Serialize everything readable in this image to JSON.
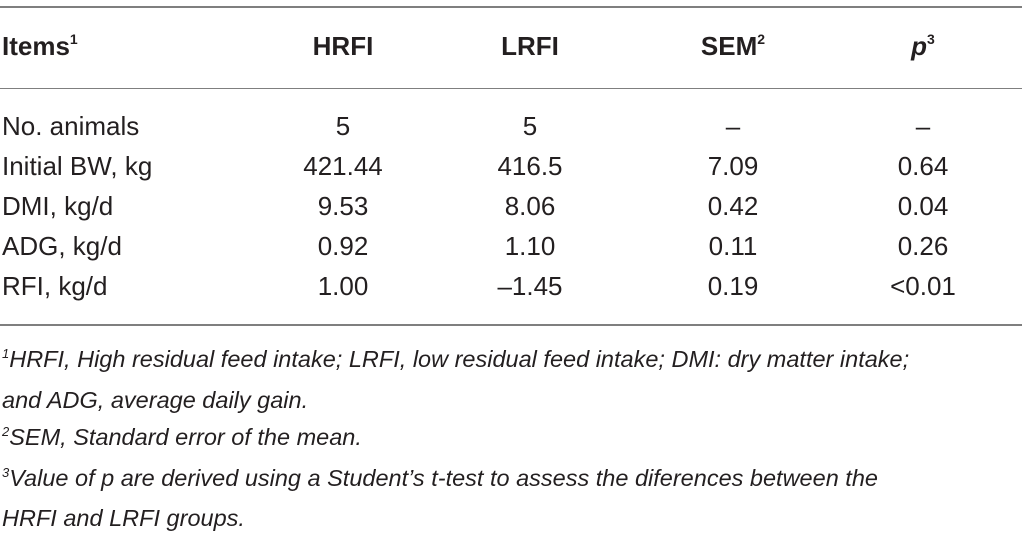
{
  "table": {
    "headers": {
      "items": "Items",
      "items_sup": "1",
      "hrfi": "HRFI",
      "lrfi": "LRFI",
      "sem": "SEM",
      "sem_sup": "2",
      "p": "p",
      "p_sup": "3"
    },
    "rows": [
      {
        "item": "No. animals",
        "hrfi": "5",
        "lrfi": "5",
        "sem": "–",
        "p": "–"
      },
      {
        "item": "Initial BW, kg",
        "hrfi": "421.44",
        "lrfi": "416.5",
        "sem": "7.09",
        "p": "0.64"
      },
      {
        "item": "DMI, kg/d",
        "hrfi": "9.53",
        "lrfi": "8.06",
        "sem": "0.42",
        "p": "0.04"
      },
      {
        "item": "ADG, kg/d",
        "hrfi": "0.92",
        "lrfi": "1.10",
        "sem": "0.11",
        "p": "0.26"
      },
      {
        "item": "RFI, kg/d",
        "hrfi": "1.00",
        "lrfi": "–1.45",
        "sem": "0.19",
        "p": "<0.01"
      }
    ]
  },
  "footnotes": [
    {
      "mark": "1",
      "text": "HRFI, High residual feed intake; LRFI, low residual feed intake; DMI: dry matter intake;",
      "cont": "and ADG, average daily gain."
    },
    {
      "mark": "2",
      "text": "SEM, Standard error of the mean."
    },
    {
      "mark": "3",
      "text": "Value of p are derived using a Student’s t-test to assess the diferences between the",
      "cont": "HRFI and LRFI groups."
    }
  ]
}
